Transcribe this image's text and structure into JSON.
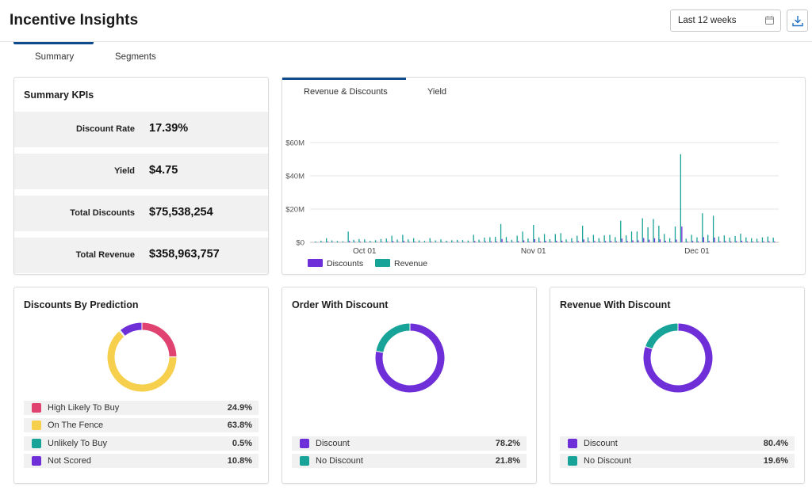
{
  "app": {
    "title": "Incentive Insights"
  },
  "date_range": {
    "value": "Last 12 weeks",
    "icon": "calendar-icon"
  },
  "download": {
    "icon": "download-icon"
  },
  "tabs": [
    {
      "label": "Summary",
      "active": true
    },
    {
      "label": "Segments",
      "active": false
    }
  ],
  "colors": {
    "accent": "#0d4b8c",
    "discounts": "#6f2fd8",
    "revenue": "#17a398",
    "high_likely": "#e0436f",
    "on_fence": "#f6cf4c",
    "unlikely": "#17a398",
    "not_scored": "#6f2fd8"
  },
  "kpis": {
    "title": "Summary KPIs",
    "rows": [
      {
        "label": "Discount Rate",
        "value": "17.39%"
      },
      {
        "label": "Yield",
        "value": "$4.75"
      },
      {
        "label": "Total Discounts",
        "value": "$75,538,254"
      },
      {
        "label": "Total Revenue",
        "value": "$358,963,757"
      }
    ]
  },
  "trend": {
    "tabs": [
      {
        "label": "Revenue & Discounts",
        "active": true
      },
      {
        "label": "Yield",
        "active": false
      }
    ],
    "legend": [
      {
        "label": "Discounts",
        "color": "#6f2fd8"
      },
      {
        "label": "Revenue",
        "color": "#17a398"
      }
    ]
  },
  "chart_data": [
    {
      "type": "bar",
      "title": "",
      "xlabel": "",
      "ylabel": "",
      "y_ticks": [
        "$0",
        "$20M",
        "$40M",
        "$60M"
      ],
      "ylim": [
        0,
        60000000
      ],
      "x_ticks": [
        {
          "label": "Oct 01",
          "day": 10
        },
        {
          "label": "Nov 01",
          "day": 41
        },
        {
          "label": "Dec 01",
          "day": 71
        }
      ],
      "grid": true,
      "legend_position": "bottom-left",
      "days": [
        1,
        2,
        3,
        4,
        5,
        6,
        7,
        8,
        9,
        10,
        11,
        12,
        13,
        14,
        15,
        16,
        17,
        18,
        19,
        20,
        21,
        22,
        23,
        24,
        25,
        26,
        27,
        28,
        29,
        30,
        31,
        32,
        33,
        34,
        35,
        36,
        37,
        38,
        39,
        40,
        41,
        42,
        43,
        44,
        45,
        46,
        47,
        48,
        49,
        50,
        51,
        52,
        53,
        54,
        55,
        56,
        57,
        58,
        59,
        60,
        61,
        62,
        63,
        64,
        65,
        66,
        67,
        68,
        69,
        70,
        71,
        72,
        73,
        74,
        75,
        76,
        77,
        78,
        79,
        80,
        81,
        82,
        83,
        84,
        85
      ],
      "series": [
        {
          "name": "Revenue",
          "values": [
            500000,
            1000000,
            2500000,
            1200000,
            800000,
            600000,
            6500000,
            1500000,
            2000000,
            1800000,
            900000,
            1300000,
            2000000,
            2300000,
            4000000,
            1700000,
            4500000,
            1800000,
            2500000,
            1200000,
            900000,
            2500000,
            1200000,
            1800000,
            1000000,
            1300000,
            1500000,
            1400000,
            1100000,
            4500000,
            1600000,
            2800000,
            3100000,
            3300000,
            11000000,
            3200000,
            1500000,
            4000000,
            6500000,
            2300000,
            10500000,
            3000000,
            5000000,
            1900000,
            5000000,
            5500000,
            1800000,
            2500000,
            4000000,
            10000000,
            3000000,
            4500000,
            2500000,
            4200000,
            4500000,
            3100000,
            13000000,
            4200000,
            6500000,
            6500000,
            14500000,
            9000000,
            14000000,
            10000000,
            5000000,
            2500000,
            9500000,
            53000000,
            2200000,
            4500000,
            3000000,
            17500000,
            4500000,
            16000000,
            3500000,
            4200000,
            2800000,
            3800000,
            5200000,
            3000000,
            2500000,
            2200000,
            3000000,
            3500000,
            2800000
          ]
        },
        {
          "name": "Discounts",
          "values": [
            100000,
            200000,
            400000,
            200000,
            150000,
            100000,
            800000,
            300000,
            400000,
            300000,
            150000,
            250000,
            300000,
            400000,
            700000,
            300000,
            800000,
            300000,
            400000,
            200000,
            150000,
            400000,
            200000,
            300000,
            200000,
            250000,
            300000,
            250000,
            200000,
            800000,
            300000,
            500000,
            550000,
            600000,
            2000000,
            600000,
            300000,
            700000,
            1200000,
            400000,
            1900000,
            500000,
            900000,
            350000,
            900000,
            1000000,
            300000,
            450000,
            700000,
            1800000,
            550000,
            800000,
            450000,
            750000,
            800000,
            550000,
            2300000,
            750000,
            1200000,
            1200000,
            2600000,
            1600000,
            2500000,
            1800000,
            900000,
            450000,
            1700000,
            9500000,
            400000,
            800000,
            550000,
            3100000,
            800000,
            2900000,
            600000,
            750000,
            500000,
            700000,
            950000,
            550000,
            450000,
            400000,
            550000,
            600000,
            500000
          ]
        }
      ]
    },
    {
      "type": "pie",
      "title": "Discounts By Prediction",
      "categories": [
        "High Likely To Buy",
        "On The Fence",
        "Unlikely To Buy",
        "Not Scored"
      ],
      "values": [
        24.9,
        63.8,
        0.5,
        10.8
      ],
      "colors": [
        "#e0436f",
        "#f6cf4c",
        "#17a398",
        "#6f2fd8"
      ],
      "labels": [
        "24.9%",
        "63.8%",
        "0.5%",
        "10.8%"
      ],
      "legend_position": "bottom"
    },
    {
      "type": "pie",
      "title": "Order With Discount",
      "categories": [
        "Discount",
        "No Discount"
      ],
      "values": [
        78.2,
        21.8
      ],
      "colors": [
        "#6f2fd8",
        "#17a398"
      ],
      "labels": [
        "78.2%",
        "21.8%"
      ],
      "legend_position": "bottom"
    },
    {
      "type": "pie",
      "title": "Revenue With Discount",
      "categories": [
        "Discount",
        "No Discount"
      ],
      "values": [
        80.4,
        19.6
      ],
      "colors": [
        "#6f2fd8",
        "#17a398"
      ],
      "labels": [
        "80.4%",
        "19.6%"
      ],
      "legend_position": "bottom"
    }
  ]
}
